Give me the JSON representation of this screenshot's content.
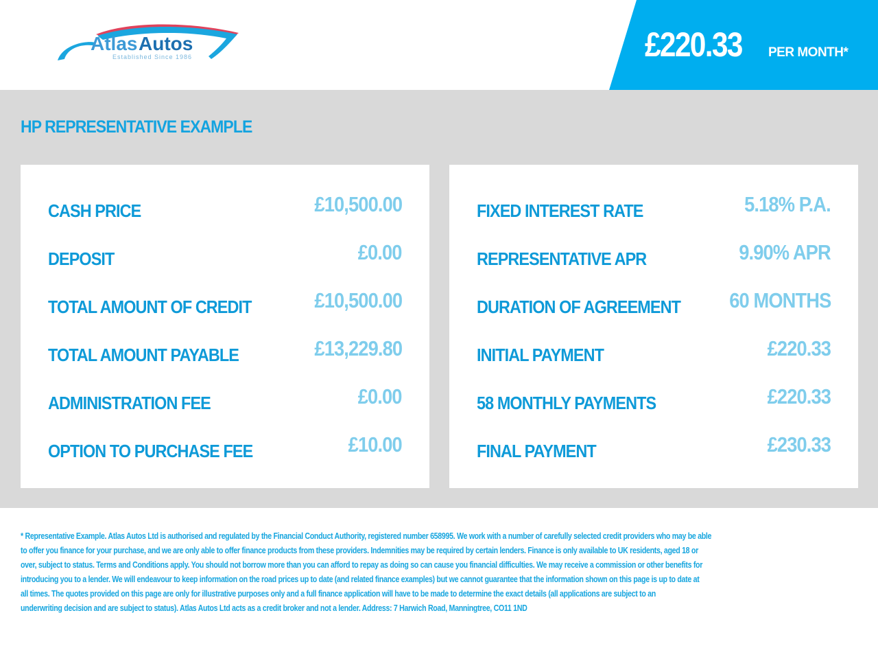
{
  "header": {
    "logo_text_1": "Atlas",
    "logo_text_2": "Autos",
    "logo_tagline": "Established Since 1986",
    "monthly_price": "£220.33",
    "per_month_label": "PER MONTH*"
  },
  "main": {
    "title": "HP REPRESENTATIVE EXAMPLE",
    "left": [
      {
        "label": "CASH PRICE",
        "value": "£10,500.00"
      },
      {
        "label": "DEPOSIT",
        "value": "£0.00"
      },
      {
        "label": "TOTAL AMOUNT OF CREDIT",
        "value": "£10,500.00"
      },
      {
        "label": "TOTAL AMOUNT PAYABLE",
        "value": "£13,229.80"
      },
      {
        "label": "ADMINISTRATION FEE",
        "value": "£0.00"
      },
      {
        "label": "OPTION TO PURCHASE FEE",
        "value": "£10.00"
      }
    ],
    "right": [
      {
        "label": "FIXED INTEREST RATE",
        "value": "5.18% P.A."
      },
      {
        "label": "REPRESENTATIVE APR",
        "value": "9.90% APR"
      },
      {
        "label": "DURATION OF AGREEMENT",
        "value": "60 MONTHS"
      },
      {
        "label": "INITIAL PAYMENT",
        "value": "£220.33"
      },
      {
        "label": "58 MONTHLY PAYMENTS",
        "value": "£220.33"
      },
      {
        "label": "FINAL PAYMENT",
        "value": "£230.33"
      }
    ]
  },
  "colors": {
    "accent": "#00aeef",
    "label": "#0e9ad8",
    "value": "#7fcdec",
    "panel_bg": "#d9d9d9"
  },
  "footer": {
    "lines": [
      "* Representative Example. Atlas Autos Ltd is authorised and regulated by the Financial Conduct Authority, registered number 658995. We work with a number of carefully selected credit providers who may be able",
      "to offer you finance for your purchase, and we are only able to offer finance products from these providers. Indemnities may be required by certain lenders. Finance is only available to UK residents, aged 18 or",
      "over, subject to status. Terms and Conditions apply. You should not borrow more than you can afford to repay as doing so can cause you financial difficulties. We may receive a commission or other benefits for",
      "introducing you to a lender. We will endeavour to keep information on the road prices up to date (and related finance examples) but we cannot guarantee that the information shown on this page is up to date at",
      "all times. The quotes provided on this page are only for illustrative purposes only and a full finance application will have to be made to determine the exact details (all applications are subject to an",
      "underwriting decision and are subject to status). Atlas Autos Ltd acts as a credit broker and not a lender. Address: 7 Harwich Road, Manningtree, CO11 1ND"
    ]
  }
}
